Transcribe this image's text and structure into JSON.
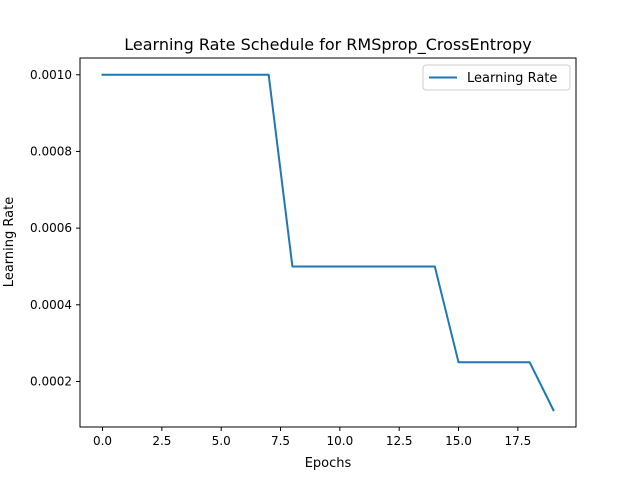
{
  "chart_data": {
    "type": "line",
    "title": "Learning Rate Schedule for RMSprop_CrossEntropy",
    "xlabel": "Epochs",
    "ylabel": "Learning Rate",
    "xlim": [
      -0.95,
      19.95
    ],
    "ylim": [
      8.125e-05,
      0.00104375
    ],
    "x_ticks": [
      0,
      2.5,
      5,
      7.5,
      10,
      12.5,
      15,
      17.5
    ],
    "x_tick_labels": [
      "0.0",
      "2.5",
      "5.0",
      "7.5",
      "10.0",
      "12.5",
      "15.0",
      "17.5"
    ],
    "y_ticks": [
      0.0002,
      0.0004,
      0.0006,
      0.0008,
      0.001
    ],
    "y_tick_labels": [
      "0.0002",
      "0.0004",
      "0.0006",
      "0.0008",
      "0.0010"
    ],
    "grid": false,
    "legend_position": "top-right",
    "series": [
      {
        "name": "Learning Rate",
        "color": "#1f77b4",
        "x": [
          0,
          1,
          2,
          3,
          4,
          5,
          6,
          7,
          8,
          9,
          10,
          11,
          12,
          13,
          14,
          15,
          16,
          17,
          18,
          19
        ],
        "values": [
          0.001,
          0.001,
          0.001,
          0.001,
          0.001,
          0.001,
          0.001,
          0.001,
          0.0005,
          0.0005,
          0.0005,
          0.0005,
          0.0005,
          0.0005,
          0.0005,
          0.00025,
          0.00025,
          0.00025,
          0.00025,
          0.000125
        ]
      }
    ]
  }
}
